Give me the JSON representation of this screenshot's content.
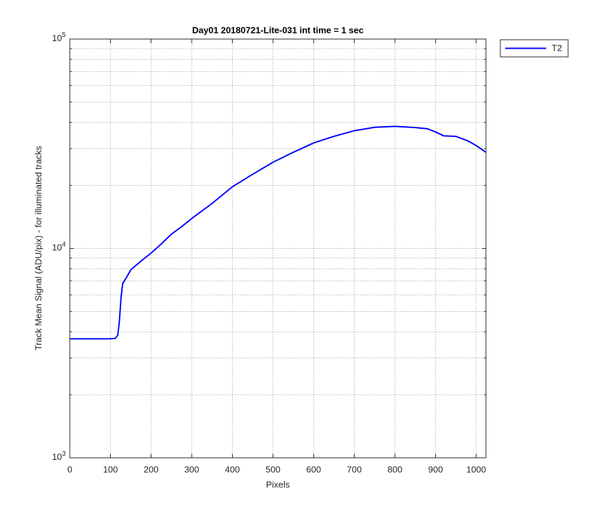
{
  "chart_data": {
    "type": "line",
    "title": "Day01 20180721-Lite-031 int time = 1 sec",
    "xlabel": "Pixels",
    "ylabel": "Track Mean Signal (ADU/pix) - for illuminated tracks",
    "yscale": "log",
    "grid": true,
    "minor_grid": true,
    "legend_position": "outside-right-top",
    "xlim": [
      0,
      1024
    ],
    "xticks": [
      0,
      100,
      200,
      300,
      400,
      500,
      600,
      700,
      800,
      900,
      1000
    ],
    "ylim": [
      1000,
      100000
    ],
    "yticks": [
      {
        "value": 1000,
        "label": "10^3"
      },
      {
        "value": 10000,
        "label": "10^4"
      },
      {
        "value": 100000,
        "label": "10^5"
      }
    ],
    "x": [
      0,
      50,
      100,
      112,
      118,
      122,
      126,
      130,
      140,
      150,
      175,
      200,
      225,
      250,
      275,
      300,
      350,
      400,
      450,
      500,
      550,
      600,
      650,
      700,
      750,
      800,
      850,
      880,
      900,
      920,
      950,
      980,
      1000,
      1024
    ],
    "series": [
      {
        "name": "T2",
        "color": "#0000ff",
        "values": [
          3700,
          3700,
          3700,
          3720,
          3850,
          4500,
          5800,
          6800,
          7300,
          7900,
          8700,
          9500,
          10500,
          11700,
          12700,
          13900,
          16400,
          19700,
          22600,
          25800,
          28800,
          31900,
          34300,
          36500,
          37900,
          38300,
          37800,
          37300,
          36000,
          34500,
          34300,
          32600,
          31000,
          28800
        ]
      }
    ]
  }
}
